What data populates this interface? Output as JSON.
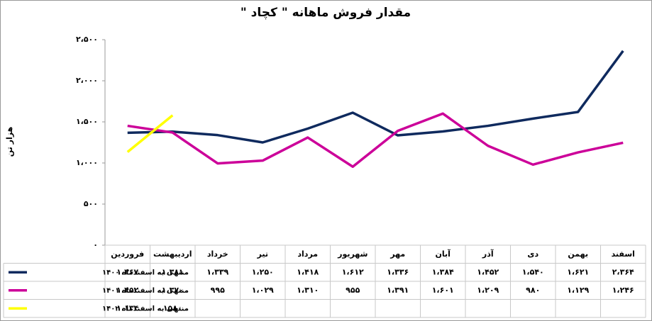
{
  "chart_data": {
    "type": "line",
    "title": "مقدار فروش ماهانه \" کچاد \"",
    "y_label": "هزار تن",
    "categories": [
      "فروردین",
      "اردیبهشت",
      "خرداد",
      "تیر",
      "مرداد",
      "شهریور",
      "مهر",
      "آبان",
      "آذر",
      "دی",
      "بهمن",
      "اسفند"
    ],
    "series": [
      {
        "name": "منتهی به اسفندماه ۱۴۰۰",
        "color": "#0f2a5e",
        "values": [
          1367,
          1381,
          1339,
          1250,
          1418,
          1612,
          1336,
          1384,
          1452,
          1540,
          1621,
          2364
        ],
        "value_labels": [
          "۱،۳۶۷",
          "۱،۳۸۱",
          "۱،۳۳۹",
          "۱،۲۵۰",
          "۱،۴۱۸",
          "۱،۶۱۲",
          "۱،۳۳۶",
          "۱،۳۸۴",
          "۱،۴۵۲",
          "۱،۵۴۰",
          "۱،۶۲۱",
          "۲،۳۶۴"
        ]
      },
      {
        "name": "منتهی به اسفندماه ۱۴۰۱",
        "color": "#cc0099",
        "values": [
          1452,
          1370,
          995,
          1029,
          1310,
          955,
          1391,
          1601,
          1209,
          980,
          1129,
          1246
        ],
        "value_labels": [
          "۱،۴۵۲",
          "۱،۳۷۰",
          "۹۹۵",
          "۱،۰۲۹",
          "۱،۳۱۰",
          "۹۵۵",
          "۱،۳۹۱",
          "۱،۶۰۱",
          "۱،۲۰۹",
          "۹۸۰",
          "۱،۱۲۹",
          "۱،۲۴۶"
        ]
      },
      {
        "name": "منتهی به اسفندماه ۱۴۰۲",
        "color": "#ffff00",
        "values": [
          1134,
          1580,
          null,
          null,
          null,
          null,
          null,
          null,
          null,
          null,
          null,
          null
        ],
        "value_labels": [
          "۱،۱۳۴",
          "۱۵۸۰",
          null,
          null,
          null,
          null,
          null,
          null,
          null,
          null,
          null,
          null
        ]
      }
    ],
    "ylim": [
      0,
      2500
    ],
    "yticks": [
      {
        "value": 0,
        "label": "۰"
      },
      {
        "value": 500,
        "label": "۵۰۰"
      },
      {
        "value": 1000,
        "label": "۱،۰۰۰"
      },
      {
        "value": 1500,
        "label": "۱،۵۰۰"
      },
      {
        "value": 2000,
        "label": "۲،۰۰۰"
      },
      {
        "value": 2500,
        "label": "۲،۵۰۰"
      }
    ],
    "grid": false
  }
}
